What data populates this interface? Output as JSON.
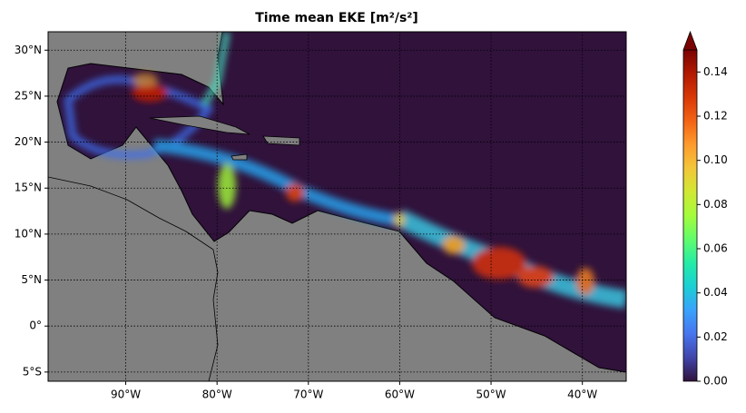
{
  "chart_data": {
    "type": "map",
    "title": "Time mean EKE [m²/s²]",
    "xlim": [
      -98.5,
      -35.2
    ],
    "ylim": [
      -6,
      32
    ],
    "xticks": [
      {
        "value": -90,
        "label": "90°W"
      },
      {
        "value": -80,
        "label": "80°W"
      },
      {
        "value": -70,
        "label": "70°W"
      },
      {
        "value": -60,
        "label": "60°W"
      },
      {
        "value": -50,
        "label": "50°W"
      },
      {
        "value": -40,
        "label": "40°W"
      }
    ],
    "yticks": [
      {
        "value": 30,
        "label": "30°N"
      },
      {
        "value": 25,
        "label": "25°N"
      },
      {
        "value": 20,
        "label": "20°N"
      },
      {
        "value": 15,
        "label": "15°N"
      },
      {
        "value": 10,
        "label": "10°N"
      },
      {
        "value": 5,
        "label": "5°N"
      },
      {
        "value": 0,
        "label": "0°"
      },
      {
        "value": -5,
        "label": "5°S"
      }
    ],
    "grid": true,
    "colorbar": {
      "colormap": "turbo",
      "lim": [
        0,
        0.15
      ],
      "extend": "max",
      "ticks": [
        {
          "value": 0,
          "label": "0.00"
        },
        0.02,
        0.04,
        0.06,
        0.08,
        {
          "value": 0.1,
          "label": "0.10"
        },
        0.12,
        0.14
      ]
    }
  }
}
